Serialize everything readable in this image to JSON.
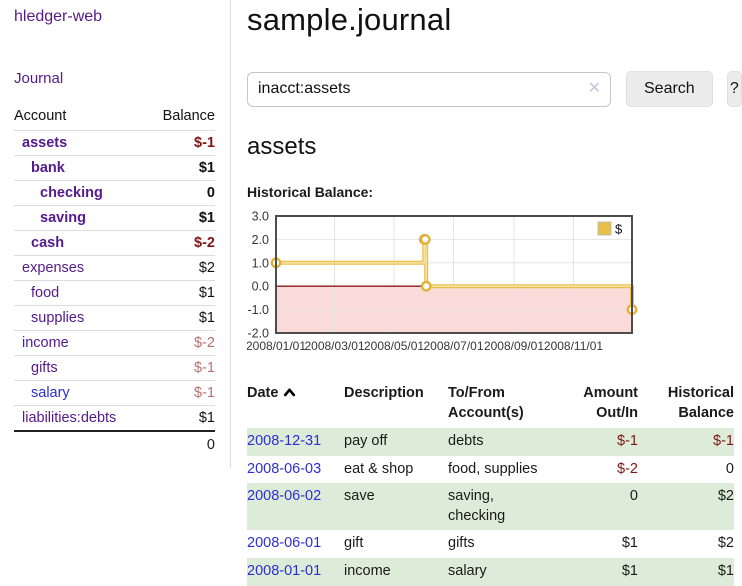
{
  "app": {
    "brand": "hledger-web",
    "nav": {
      "journal": "Journal"
    }
  },
  "sidebar": {
    "header": {
      "account": "Account",
      "balance": "Balance"
    },
    "accounts": [
      {
        "name": "assets",
        "indent": 1,
        "bold": true,
        "balance": "$-1",
        "tone": "neg-strong",
        "link": "purple"
      },
      {
        "name": "bank",
        "indent": 2,
        "bold": true,
        "balance": "$1",
        "tone": "",
        "link": "purple"
      },
      {
        "name": "checking",
        "indent": 3,
        "bold": true,
        "balance": "0",
        "tone": "",
        "link": "purple"
      },
      {
        "name": "saving",
        "indent": 3,
        "bold": true,
        "balance": "$1",
        "tone": "",
        "link": "purple"
      },
      {
        "name": "cash",
        "indent": 2,
        "bold": true,
        "balance": "$-2",
        "tone": "neg-strong",
        "link": "purple"
      },
      {
        "name": "expenses",
        "indent": 1,
        "bold": false,
        "balance": "$2",
        "tone": "",
        "link": "purple"
      },
      {
        "name": "food",
        "indent": 2,
        "bold": false,
        "balance": "$1",
        "tone": "",
        "link": "purple"
      },
      {
        "name": "supplies",
        "indent": 2,
        "bold": false,
        "balance": "$1",
        "tone": "",
        "link": "purple"
      },
      {
        "name": "income",
        "indent": 1,
        "bold": false,
        "balance": "$-2",
        "tone": "neg-soft",
        "link": "purple"
      },
      {
        "name": "gifts",
        "indent": 2,
        "bold": false,
        "balance": "$-1",
        "tone": "neg-soft",
        "link": "purple"
      },
      {
        "name": "salary",
        "indent": 2,
        "bold": false,
        "balance": "$-1",
        "tone": "neg-soft",
        "link": "blue"
      },
      {
        "name": "liabilities:debts",
        "indent": 1,
        "bold": false,
        "balance": "$1",
        "tone": "",
        "link": "purple"
      }
    ],
    "total": "0"
  },
  "header": {
    "title": "sample.journal"
  },
  "search": {
    "value": "inacct:assets",
    "clear_icon": "✕",
    "button_label": "Search",
    "help_label": "?"
  },
  "main": {
    "account_title": "assets",
    "chart_label": "Historical Balance:"
  },
  "chart_data": {
    "type": "line",
    "step": true,
    "title": "Historical Balance",
    "legend": {
      "position": "top-right",
      "entries": [
        "$"
      ]
    },
    "xlim_days": [
      0,
      365
    ],
    "ylim": [
      -2,
      3
    ],
    "y_ticks": [
      {
        "v": 3,
        "label": "3.0"
      },
      {
        "v": 2,
        "label": "2.0"
      },
      {
        "v": 1,
        "label": "1.0"
      },
      {
        "v": 0,
        "label": "0.0"
      },
      {
        "v": -1,
        "label": "-1.0"
      },
      {
        "v": -2,
        "label": "-2.0"
      }
    ],
    "x_ticks": [
      {
        "day": 0,
        "label": "2008/01/01"
      },
      {
        "day": 60,
        "label": "2008/03/01"
      },
      {
        "day": 121,
        "label": "2008/05/01"
      },
      {
        "day": 182,
        "label": "2008/07/01"
      },
      {
        "day": 244,
        "label": "2008/09/01"
      },
      {
        "day": 305,
        "label": "2008/11/01"
      }
    ],
    "series": [
      {
        "name": "$",
        "color": "#e9c04a",
        "points": [
          {
            "date": "2008/01/01",
            "day": 0,
            "y": 1
          },
          {
            "date": "2008/06/01",
            "day": 152,
            "y": 2
          },
          {
            "date": "2008/06/02",
            "day": 153,
            "y": 2
          },
          {
            "date": "2008/06/03",
            "day": 154,
            "y": 0
          },
          {
            "date": "2008/12/31",
            "day": 365,
            "y": -1
          }
        ]
      }
    ],
    "grid": true,
    "negative_region_fill": "#fbdada",
    "zero_line_color": "#8b1a1a"
  },
  "register": {
    "columns": [
      {
        "label": "Date",
        "sort": "ascending"
      },
      {
        "label": "Description"
      },
      {
        "label": "To/From Account(s)"
      },
      {
        "label": "Amount Out/In"
      },
      {
        "label": "Historical Balance"
      }
    ],
    "rows": [
      {
        "date": "2008-12-31",
        "description": "pay off",
        "accounts": "debts",
        "amount": "$-1",
        "amount_neg": true,
        "balance": "$-1",
        "balance_neg": true,
        "shade": true
      },
      {
        "date": "2008-06-03",
        "description": "eat & shop",
        "accounts": "food, supplies",
        "amount": "$-2",
        "amount_neg": true,
        "balance": "0",
        "balance_neg": false,
        "shade": false
      },
      {
        "date": "2008-06-02",
        "description": "save",
        "accounts": "saving, checking",
        "amount": "0",
        "amount_neg": false,
        "balance": "$2",
        "balance_neg": false,
        "shade": true
      },
      {
        "date": "2008-06-01",
        "description": "gift",
        "accounts": "gifts",
        "amount": "$1",
        "amount_neg": false,
        "balance": "$2",
        "balance_neg": false,
        "shade": false
      },
      {
        "date": "2008-01-01",
        "description": "income",
        "accounts": "salary",
        "amount": "$1",
        "amount_neg": false,
        "balance": "$1",
        "balance_neg": false,
        "shade": true
      }
    ]
  },
  "colors": {
    "link_purple": "#551A8B",
    "link_blue": "#2e2ed6",
    "negative_strong": "#801515",
    "negative_soft": "#b5716f",
    "row_shade_green": "#ddecd8",
    "chart_gold": "#e9c04a",
    "chart_negative_pink": "#fbdada",
    "chart_zero_line": "#8b1a1a"
  }
}
